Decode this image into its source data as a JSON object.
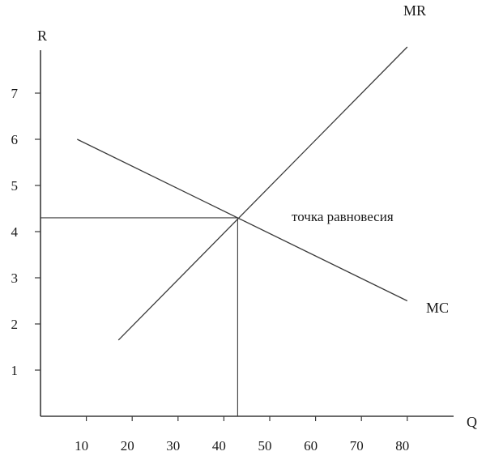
{
  "chart_data": {
    "type": "line",
    "title": "",
    "xlabel": "Q",
    "ylabel": "R",
    "xticks": [
      "10",
      "20",
      "30",
      "40",
      "50",
      "60",
      "70",
      "80"
    ],
    "yticks": [
      "1",
      "2",
      "3",
      "4",
      "5",
      "6",
      "7"
    ],
    "xlim": [
      0,
      90
    ],
    "ylim": [
      0,
      8
    ],
    "grid": false,
    "legend": "none",
    "series": [
      {
        "name": "MR",
        "points": [
          {
            "x": 17,
            "y": 1.65
          },
          {
            "x": 80,
            "y": 8.0
          }
        ]
      },
      {
        "name": "MC",
        "points": [
          {
            "x": 8,
            "y": 6.0
          },
          {
            "x": 80,
            "y": 2.5
          }
        ]
      }
    ],
    "equilibrium": {
      "x": 43,
      "y": 4.3
    },
    "annotations": [
      {
        "text": "точка равновесия",
        "x": 61,
        "y": 4.3
      }
    ]
  }
}
